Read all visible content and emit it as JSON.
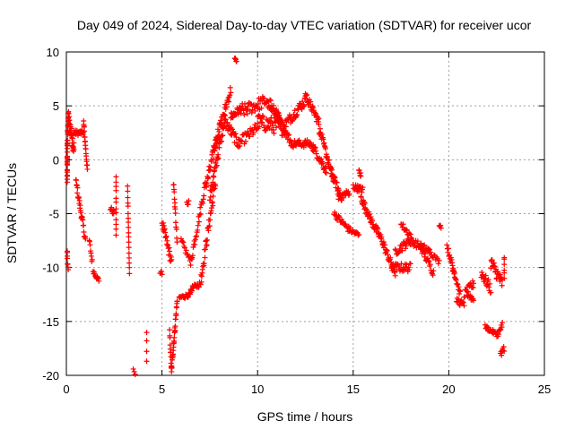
{
  "chart_data": {
    "type": "scatter",
    "title": "Day 049 of 2024, Sidereal Day-to-day VTEC variation (SDTVAR) for receiver ucor",
    "xlabel": "GPS time / hours",
    "ylabel": "SDTVAR / TECUs",
    "xlim": [
      0,
      25
    ],
    "ylim": [
      -20,
      10
    ],
    "xticks": [
      0,
      5,
      10,
      15,
      20,
      25
    ],
    "yticks": [
      -20,
      -15,
      -10,
      -5,
      0,
      5,
      10
    ],
    "xtick_labels": [
      "0",
      "5",
      "10",
      "15",
      "20",
      "25"
    ],
    "ytick_labels": [
      "-20",
      "-15",
      "-10",
      "-5",
      "0",
      "5",
      "10"
    ],
    "grid": true,
    "marker": "+",
    "series": [
      {
        "name": "SDTVAR",
        "color": "#ff0000",
        "tracks": [
          {
            "from": [
              0.0,
              -2.0
            ],
            "to": [
              0.1,
              4.2
            ],
            "n": 40,
            "spread": 1.2
          },
          {
            "from": [
              0.1,
              4.0
            ],
            "to": [
              0.4,
              1.0
            ],
            "n": 30,
            "spread": 1.5
          },
          {
            "from": [
              0.0,
              -8.5
            ],
            "to": [
              0.1,
              -10.2
            ],
            "n": 8,
            "spread": 0.4
          },
          {
            "from": [
              0.4,
              2.5
            ],
            "to": [
              0.9,
              2.5
            ],
            "n": 20,
            "spread": 0.5
          },
          {
            "from": [
              0.5,
              -2.0
            ],
            "to": [
              1.0,
              -7.5
            ],
            "n": 30,
            "spread": 0.8
          },
          {
            "from": [
              0.9,
              3.5
            ],
            "to": [
              1.1,
              -1.0
            ],
            "n": 20,
            "spread": 0.6
          },
          {
            "from": [
              1.2,
              -7.5
            ],
            "to": [
              1.35,
              -9.5
            ],
            "n": 8,
            "spread": 0.6
          },
          {
            "from": [
              1.4,
              -10.3
            ],
            "to": [
              1.7,
              -11.2
            ],
            "n": 12,
            "spread": 0.4
          },
          {
            "from": [
              2.3,
              -4.5
            ],
            "to": [
              2.5,
              -5.0
            ],
            "n": 8,
            "spread": 0.5
          },
          {
            "from": [
              2.6,
              -1.5
            ],
            "to": [
              2.6,
              -7.0
            ],
            "n": 12,
            "spread": 0.3
          },
          {
            "from": [
              3.2,
              -2.5
            ],
            "to": [
              3.3,
              -10.5
            ],
            "n": 18,
            "spread": 0.3
          },
          {
            "from": [
              3.5,
              -19.5
            ],
            "to": [
              3.6,
              -20.0
            ],
            "n": 3,
            "spread": 0.2
          },
          {
            "from": [
              4.2,
              -16.0
            ],
            "to": [
              4.2,
              -18.6
            ],
            "n": 4,
            "spread": 0.2
          },
          {
            "from": [
              4.9,
              -10.5
            ],
            "to": [
              5.0,
              -10.5
            ],
            "n": 5,
            "spread": 0.3
          },
          {
            "from": [
              5.0,
              -5.8
            ],
            "to": [
              5.5,
              -9.5
            ],
            "n": 25,
            "spread": 1.0
          },
          {
            "from": [
              5.4,
              -16.0
            ],
            "to": [
              5.5,
              -19.8
            ],
            "n": 12,
            "spread": 0.5
          },
          {
            "from": [
              5.5,
              -19.5
            ],
            "to": [
              5.8,
              -13.0
            ],
            "n": 30,
            "spread": 0.8
          },
          {
            "from": [
              5.6,
              -2.0
            ],
            "to": [
              5.8,
              -8.0
            ],
            "n": 16,
            "spread": 0.8
          },
          {
            "from": [
              5.9,
              -12.8
            ],
            "to": [
              6.5,
              -12.5
            ],
            "n": 20,
            "spread": 0.4
          },
          {
            "from": [
              6.0,
              -7.5
            ],
            "to": [
              6.5,
              -9.5
            ],
            "n": 14,
            "spread": 0.6
          },
          {
            "from": [
              6.3,
              -4.0
            ],
            "to": [
              6.4,
              -4.0
            ],
            "n": 4,
            "spread": 0.4
          },
          {
            "from": [
              6.5,
              -12.0
            ],
            "to": [
              7.0,
              -11.5
            ],
            "n": 16,
            "spread": 0.5
          },
          {
            "from": [
              6.5,
              -9.5
            ],
            "to": [
              7.3,
              -2.0
            ],
            "n": 30,
            "spread": 1.0
          },
          {
            "from": [
              7.0,
              -11.5
            ],
            "to": [
              7.8,
              -2.0
            ],
            "n": 40,
            "spread": 1.2
          },
          {
            "from": [
              7.3,
              -2.5
            ],
            "to": [
              8.0,
              3.0
            ],
            "n": 30,
            "spread": 1.2
          },
          {
            "from": [
              7.5,
              -3.5
            ],
            "to": [
              8.3,
              4.0
            ],
            "n": 40,
            "spread": 1.2
          },
          {
            "from": [
              7.7,
              1.0
            ],
            "to": [
              8.6,
              6.5
            ],
            "n": 35,
            "spread": 1.0
          },
          {
            "from": [
              8.8,
              9.5
            ],
            "to": [
              8.9,
              9.0
            ],
            "n": 6,
            "spread": 0.3
          },
          {
            "from": [
              8.3,
              3.5
            ],
            "to": [
              9.0,
              1.5
            ],
            "n": 25,
            "spread": 1.0
          },
          {
            "from": [
              8.6,
              4.0
            ],
            "to": [
              9.2,
              4.8
            ],
            "n": 25,
            "spread": 0.8
          },
          {
            "from": [
              9.0,
              1.5
            ],
            "to": [
              10.0,
              3.0
            ],
            "n": 30,
            "spread": 1.0
          },
          {
            "from": [
              9.2,
              4.5
            ],
            "to": [
              10.5,
              5.5
            ],
            "n": 40,
            "spread": 1.2
          },
          {
            "from": [
              10.0,
              3.5
            ],
            "to": [
              11.3,
              3.0
            ],
            "n": 45,
            "spread": 1.5
          },
          {
            "from": [
              10.5,
              5.5
            ],
            "to": [
              11.2,
              4.0
            ],
            "n": 30,
            "spread": 1.2
          },
          {
            "from": [
              11.0,
              4.0
            ],
            "to": [
              11.8,
              1.5
            ],
            "n": 30,
            "spread": 0.8
          },
          {
            "from": [
              11.3,
              3.0
            ],
            "to": [
              12.5,
              5.5
            ],
            "n": 40,
            "spread": 1.0
          },
          {
            "from": [
              11.8,
              1.5
            ],
            "to": [
              12.8,
              1.5
            ],
            "n": 30,
            "spread": 0.7
          },
          {
            "from": [
              12.5,
              6.0
            ],
            "to": [
              13.2,
              3.5
            ],
            "n": 30,
            "spread": 0.8
          },
          {
            "from": [
              12.8,
              1.5
            ],
            "to": [
              13.6,
              -1.0
            ],
            "n": 30,
            "spread": 0.8
          },
          {
            "from": [
              13.2,
              3.0
            ],
            "to": [
              14.0,
              -2.0
            ],
            "n": 35,
            "spread": 0.8
          },
          {
            "from": [
              13.8,
              -1.0
            ],
            "to": [
              14.4,
              -3.5
            ],
            "n": 25,
            "spread": 0.8
          },
          {
            "from": [
              14.2,
              -3.5
            ],
            "to": [
              14.8,
              -3.0
            ],
            "n": 20,
            "spread": 0.6
          },
          {
            "from": [
              14.0,
              -5.0
            ],
            "to": [
              14.8,
              -6.5
            ],
            "n": 25,
            "spread": 0.6
          },
          {
            "from": [
              14.8,
              -6.5
            ],
            "to": [
              15.3,
              -7.0
            ],
            "n": 15,
            "spread": 0.5
          },
          {
            "from": [
              15.0,
              -2.5
            ],
            "to": [
              15.5,
              -2.8
            ],
            "n": 20,
            "spread": 0.6
          },
          {
            "from": [
              15.3,
              -1.0
            ],
            "to": [
              15.4,
              -1.5
            ],
            "n": 6,
            "spread": 0.5
          },
          {
            "from": [
              15.4,
              -3.5
            ],
            "to": [
              15.9,
              -5.5
            ],
            "n": 25,
            "spread": 0.7
          },
          {
            "from": [
              15.9,
              -5.5
            ],
            "to": [
              16.6,
              -7.8
            ],
            "n": 30,
            "spread": 0.8
          },
          {
            "from": [
              16.6,
              -8.0
            ],
            "to": [
              17.2,
              -10.5
            ],
            "n": 25,
            "spread": 0.8
          },
          {
            "from": [
              17.0,
              -10.0
            ],
            "to": [
              18.0,
              -10.0
            ],
            "n": 30,
            "spread": 0.8
          },
          {
            "from": [
              17.2,
              -8.5
            ],
            "to": [
              18.0,
              -7.5
            ],
            "n": 25,
            "spread": 0.8
          },
          {
            "from": [
              17.5,
              -6.0
            ],
            "to": [
              18.0,
              -7.0
            ],
            "n": 14,
            "spread": 0.6
          },
          {
            "from": [
              18.0,
              -7.5
            ],
            "to": [
              19.0,
              -8.5
            ],
            "n": 30,
            "spread": 0.7
          },
          {
            "from": [
              18.5,
              -8.0
            ],
            "to": [
              19.2,
              -10.5
            ],
            "n": 22,
            "spread": 0.7
          },
          {
            "from": [
              19.0,
              -8.5
            ],
            "to": [
              19.5,
              -9.5
            ],
            "n": 12,
            "spread": 0.5
          },
          {
            "from": [
              19.5,
              -6.0
            ],
            "to": [
              19.6,
              -6.2
            ],
            "n": 4,
            "spread": 0.3
          },
          {
            "from": [
              19.9,
              -8.0
            ],
            "to": [
              20.3,
              -10.5
            ],
            "n": 16,
            "spread": 0.6
          },
          {
            "from": [
              20.2,
              -10.0
            ],
            "to": [
              20.6,
              -12.5
            ],
            "n": 16,
            "spread": 0.6
          },
          {
            "from": [
              20.4,
              -13.0
            ],
            "to": [
              20.8,
              -13.5
            ],
            "n": 12,
            "spread": 0.6
          },
          {
            "from": [
              20.8,
              -12.5
            ],
            "to": [
              21.3,
              -11.5
            ],
            "n": 20,
            "spread": 0.8
          },
          {
            "from": [
              21.0,
              -12.5
            ],
            "to": [
              21.3,
              -13.0
            ],
            "n": 10,
            "spread": 0.6
          },
          {
            "from": [
              21.7,
              -10.5
            ],
            "to": [
              22.2,
              -12.0
            ],
            "n": 20,
            "spread": 1.0
          },
          {
            "from": [
              21.9,
              -15.5
            ],
            "to": [
              22.6,
              -16.3
            ],
            "n": 25,
            "spread": 0.4
          },
          {
            "from": [
              22.2,
              -9.5
            ],
            "to": [
              22.8,
              -11.5
            ],
            "n": 30,
            "spread": 1.2
          },
          {
            "from": [
              22.6,
              -16.0
            ],
            "to": [
              22.8,
              -15.3
            ],
            "n": 8,
            "spread": 0.4
          },
          {
            "from": [
              22.7,
              -18.0
            ],
            "to": [
              22.9,
              -17.5
            ],
            "n": 8,
            "spread": 0.6
          },
          {
            "from": [
              22.9,
              -9.0
            ],
            "to": [
              22.9,
              -11.0
            ],
            "n": 6,
            "spread": 0.4
          }
        ]
      }
    ]
  }
}
